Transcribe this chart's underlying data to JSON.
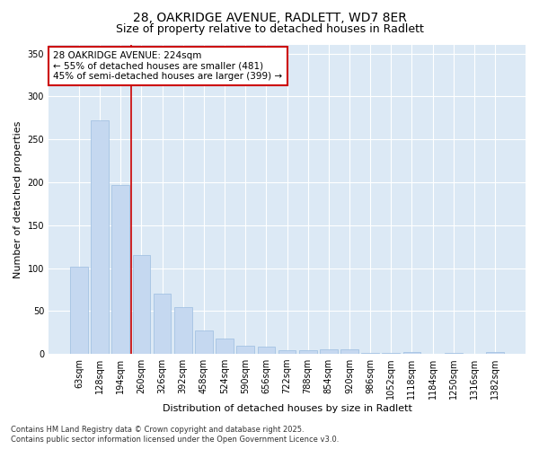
{
  "title1": "28, OAKRIDGE AVENUE, RADLETT, WD7 8ER",
  "title2": "Size of property relative to detached houses in Radlett",
  "xlabel": "Distribution of detached houses by size in Radlett",
  "ylabel": "Number of detached properties",
  "categories": [
    "63sqm",
    "128sqm",
    "194sqm",
    "260sqm",
    "326sqm",
    "392sqm",
    "458sqm",
    "524sqm",
    "590sqm",
    "656sqm",
    "722sqm",
    "788sqm",
    "854sqm",
    "920sqm",
    "986sqm",
    "1052sqm",
    "1118sqm",
    "1184sqm",
    "1250sqm",
    "1316sqm",
    "1382sqm"
  ],
  "values": [
    102,
    272,
    197,
    115,
    70,
    55,
    27,
    18,
    10,
    8,
    4,
    4,
    5,
    5,
    1,
    1,
    2,
    0,
    1,
    0,
    2
  ],
  "bar_color": "#c5d8f0",
  "bar_edge_color": "#9bbde0",
  "bar_width": 0.85,
  "vline_index": 2,
  "vline_color": "#cc0000",
  "annotation_text_line1": "28 OAKRIDGE AVENUE: 224sqm",
  "annotation_text_line2": "← 55% of detached houses are smaller (481)",
  "annotation_text_line3": "45% of semi-detached houses are larger (399) →",
  "annotation_fontsize": 7.5,
  "box_edge_color": "#cc0000",
  "ylim": [
    0,
    360
  ],
  "yticks": [
    0,
    50,
    100,
    150,
    200,
    250,
    300,
    350
  ],
  "footer_line1": "Contains HM Land Registry data © Crown copyright and database right 2025.",
  "footer_line2": "Contains public sector information licensed under the Open Government Licence v3.0.",
  "bg_color": "#ffffff",
  "plot_bg_color": "#dce9f5",
  "title_fontsize": 10,
  "subtitle_fontsize": 9,
  "axis_label_fontsize": 8,
  "tick_fontsize": 7,
  "footer_fontsize": 6
}
